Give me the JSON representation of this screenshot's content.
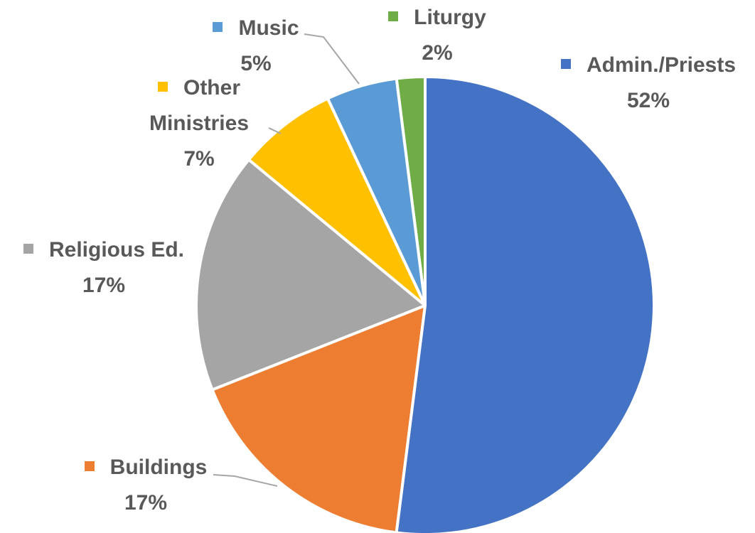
{
  "chart_data": {
    "type": "pie",
    "categories": [
      "Admin./Priests",
      "Buildings",
      "Religious Ed.",
      "Other Ministries",
      "Music",
      "Liturgy"
    ],
    "values": [
      52,
      17,
      17,
      7,
      5,
      2
    ],
    "value_labels": [
      "52%",
      "17%",
      "17%",
      "7%",
      "5%",
      "2%"
    ],
    "colors": [
      "#4472c4",
      "#ed7d31",
      "#a5a5a5",
      "#ffc000",
      "#5b9bd5",
      "#70ad47"
    ]
  }
}
